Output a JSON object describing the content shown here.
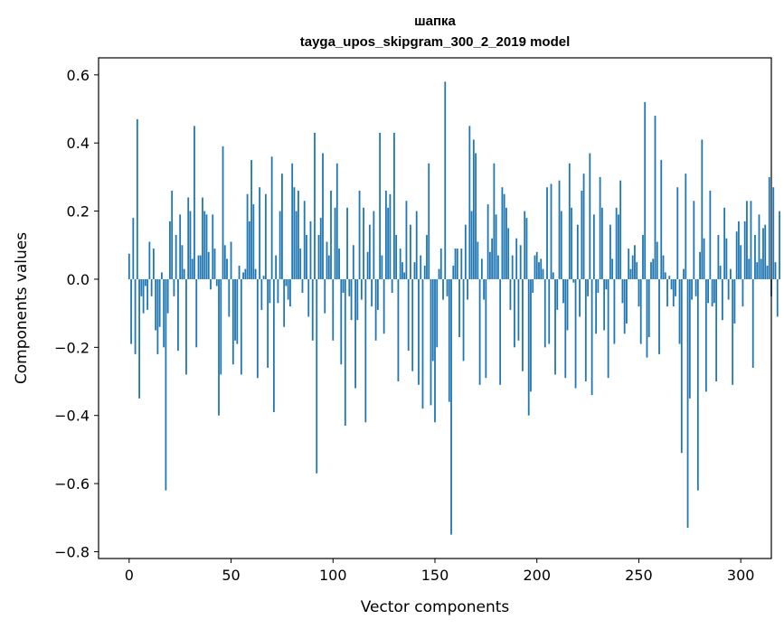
{
  "chart_data": {
    "type": "bar",
    "title": "шапка",
    "subtitle": "tayga_upos_skipgram_300_2_2019 model",
    "xlabel": "Vector components",
    "ylabel": "Components values",
    "xlim": [
      -15,
      315
    ],
    "ylim": [
      -0.82,
      0.65
    ],
    "xticks": [
      0,
      50,
      100,
      150,
      200,
      250,
      300
    ],
    "xtick_labels": [
      "0",
      "50",
      "100",
      "150",
      "200",
      "250",
      "300"
    ],
    "yticks": [
      -0.8,
      -0.6,
      -0.4,
      -0.2,
      0.0,
      0.2,
      0.4,
      0.6
    ],
    "ytick_labels": [
      "−0.8",
      "−0.6",
      "−0.4",
      "−0.2",
      "0.0",
      "0.2",
      "0.4",
      "0.6"
    ],
    "grid": false,
    "bar_color": "#1f77b4",
    "x_start": 0,
    "values": [
      0.075,
      -0.19,
      0.18,
      -0.22,
      0.47,
      -0.35,
      -0.05,
      -0.1,
      -0.02,
      -0.09,
      0.11,
      -0.05,
      0.09,
      -0.15,
      -0.22,
      -0.14,
      0.02,
      -0.2,
      -0.62,
      -0.1,
      0.17,
      0.26,
      -0.05,
      0.13,
      -0.21,
      0.19,
      0.1,
      0.03,
      -0.28,
      0.24,
      0.2,
      0.06,
      0.45,
      -0.2,
      0.07,
      0.07,
      0.24,
      0.2,
      0.19,
      0.08,
      -0.03,
      0.19,
      0.09,
      -0.02,
      -0.4,
      -0.28,
      0.39,
      0.1,
      0.06,
      -0.11,
      0.11,
      -0.25,
      -0.18,
      -0.19,
      0.04,
      -0.28,
      0.02,
      0.03,
      0.25,
      0.17,
      0.35,
      0.22,
      0.03,
      -0.29,
      0.27,
      -0.09,
      0.01,
      0.25,
      -0.26,
      -0.07,
      0.36,
      -0.39,
      0.07,
      -0.07,
      0.2,
      0.31,
      -0.14,
      -0.02,
      -0.06,
      -0.08,
      0.34,
      0.27,
      0.2,
      0.26,
      0.09,
      -0.04,
      0.23,
      0.13,
      -0.11,
      0.17,
      -0.18,
      0.43,
      -0.57,
      0.13,
      0.18,
      0.37,
      -0.1,
      0.11,
      0.07,
      0.26,
      -0.18,
      0.21,
      0.34,
      0.09,
      -0.25,
      -0.04,
      -0.43,
      0.21,
      -0.05,
      -0.12,
      0.1,
      -0.32,
      -0.12,
      0.26,
      -0.06,
      0.21,
      -0.42,
      0.08,
      0.16,
      -0.08,
      0.2,
      -0.18,
      -0.09,
      0.43,
      0.07,
      -0.16,
      0.26,
      0.21,
      0.25,
      -0.04,
      0.43,
      0.13,
      -0.3,
      0.09,
      0.05,
      0.02,
      0.23,
      -0.21,
      0.16,
      -0.27,
      0.05,
      0.2,
      -0.31,
      0.07,
      -0.38,
      0.04,
      0.13,
      0.34,
      -0.37,
      -0.24,
      -0.42,
      -0.2,
      0.03,
      0.09,
      -0.06,
      0.58,
      -0.05,
      -0.36,
      -0.75,
      0.04,
      0.09,
      0.09,
      -0.17,
      0.09,
      -0.24,
      0.16,
      -0.06,
      0.45,
      0.2,
      0.41,
      0.37,
      0.11,
      -0.31,
      0.06,
      -0.06,
      -0.29,
      0.22,
      0.08,
      0.12,
      0.34,
      0.19,
      0.07,
      -0.31,
      0.27,
      0.25,
      0.21,
      0.15,
      -0.09,
      0.07,
      -0.2,
      0.12,
      -0.18,
      0.1,
      -0.27,
      0.2,
      0.18,
      -0.4,
      -0.33,
      -0.04,
      0.07,
      0.08,
      0.05,
      0.06,
      0.03,
      -0.2,
      0.27,
      -0.19,
      0.28,
      0.02,
      -0.28,
      -0.09,
      0.29,
      0.2,
      -0.07,
      -0.29,
      -0.15,
      0.34,
      0.21,
      -0.01,
      -0.32,
      0.16,
      -0.11,
      0.26,
      0.31,
      -0.3,
      -0.05,
      0.37,
      -0.34,
      0.19,
      -0.16,
      -0.04,
      0.3,
      0.21,
      -0.15,
      -0.03,
      -0.29,
      0.16,
      0.06,
      -0.19,
      0.21,
      0.19,
      0.29,
      -0.07,
      -0.16,
      -0.13,
      0.09,
      0.03,
      0.07,
      0.1,
      0.05,
      -0.08,
      -0.19,
      0.13,
      0.52,
      -0.23,
      -0.17,
      0.05,
      0.06,
      0.48,
      0.11,
      -0.22,
      0.35,
      0.07,
      0.02,
      -0.08,
      0.01,
      -0.03,
      -0.08,
      -0.05,
      0.27,
      -0.19,
      -0.51,
      0.03,
      0.31,
      -0.73,
      -0.35,
      -0.06,
      0.23,
      -0.05,
      -0.62,
      0.08,
      0.41,
      0.12,
      -0.33,
      -0.07,
      0.26,
      -0.08,
      -0.07,
      -0.3,
      0.13,
      0.04,
      -0.12,
      0.21,
      0.12,
      -0.06,
      0.03,
      -0.31,
      -0.13,
      0.14,
      0.17,
      0.1,
      -0.08,
      0.17,
      0.23,
      0.06,
      0.23,
      -0.26,
      0.13,
      0.05,
      0.19,
      0.06,
      0.15,
      0.16,
      0.04,
      0.3,
      -0.05,
      0.27,
      0.05,
      -0.11,
      0.2
    ]
  }
}
